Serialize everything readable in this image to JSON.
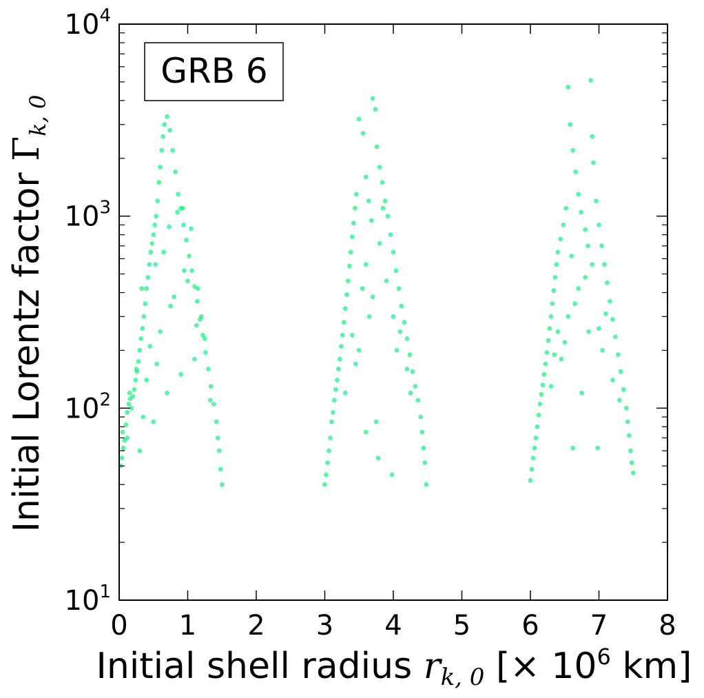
{
  "chart_data": {
    "type": "scatter",
    "title": "",
    "annotation": "GRB 6",
    "xlabel": {
      "prefix": "Initial shell radius ",
      "symbol": "r",
      "subscript": "k, 0",
      "unit_open": " [× 10",
      "unit_exp": "6",
      "unit_close": " km]"
    },
    "ylabel": {
      "prefix": "Initial Lorentz factor ",
      "symbol": "Γ",
      "subscript": "k, 0"
    },
    "xlim": [
      0,
      8
    ],
    "ylim": [
      10,
      10000
    ],
    "yscale": "log",
    "grid": false,
    "marker_color": "#00ee76",
    "x_ticks": [
      {
        "value": 0,
        "label": "0"
      },
      {
        "value": 1,
        "label": "1"
      },
      {
        "value": 2,
        "label": "2"
      },
      {
        "value": 3,
        "label": "3"
      },
      {
        "value": 4,
        "label": "4"
      },
      {
        "value": 5,
        "label": "5"
      },
      {
        "value": 6,
        "label": "6"
      },
      {
        "value": 7,
        "label": "7"
      },
      {
        "value": 8,
        "label": "8"
      }
    ],
    "y_ticks": [
      {
        "value": 10,
        "base": "10",
        "exp": "1"
      },
      {
        "value": 100,
        "base": "10",
        "exp": "2"
      },
      {
        "value": 1000,
        "base": "10",
        "exp": "3"
      },
      {
        "value": 10000,
        "base": "10",
        "exp": "4"
      }
    ],
    "pulses": [
      {
        "start": 0.0,
        "end": 1.5
      },
      {
        "start": 3.0,
        "end": 4.5
      },
      {
        "start": 6.0,
        "end": 7.5
      }
    ],
    "points": [
      [
        0.02,
        50
      ],
      [
        0.04,
        55
      ],
      [
        0.06,
        62
      ],
      [
        0.08,
        68
      ],
      [
        0.1,
        82
      ],
      [
        0.12,
        95
      ],
      [
        0.14,
        105
      ],
      [
        0.16,
        112
      ],
      [
        0.18,
        100
      ],
      [
        0.2,
        115
      ],
      [
        0.22,
        125
      ],
      [
        0.24,
        140
      ],
      [
        0.26,
        155
      ],
      [
        0.28,
        175
      ],
      [
        0.3,
        200
      ],
      [
        0.32,
        230
      ],
      [
        0.34,
        260
      ],
      [
        0.36,
        300
      ],
      [
        0.38,
        350
      ],
      [
        0.4,
        420
      ],
      [
        0.42,
        480
      ],
      [
        0.44,
        560
      ],
      [
        0.46,
        650
      ],
      [
        0.48,
        720
      ],
      [
        0.5,
        800
      ],
      [
        0.52,
        900
      ],
      [
        0.54,
        1000
      ],
      [
        0.56,
        1200
      ],
      [
        0.58,
        1500
      ],
      [
        0.6,
        1800
      ],
      [
        0.62,
        2200
      ],
      [
        0.64,
        2600
      ],
      [
        0.66,
        3000
      ],
      [
        0.7,
        3300
      ],
      [
        0.74,
        2800
      ],
      [
        0.78,
        2200
      ],
      [
        0.82,
        1700
      ],
      [
        0.86,
        1300
      ],
      [
        0.9,
        1100
      ],
      [
        0.94,
        900
      ],
      [
        0.98,
        750
      ],
      [
        1.02,
        620
      ],
      [
        1.06,
        520
      ],
      [
        1.1,
        430
      ],
      [
        1.14,
        360
      ],
      [
        1.18,
        290
      ],
      [
        1.22,
        240
      ],
      [
        1.26,
        195
      ],
      [
        1.3,
        160
      ],
      [
        1.34,
        130
      ],
      [
        1.38,
        105
      ],
      [
        1.42,
        85
      ],
      [
        1.44,
        70
      ],
      [
        1.46,
        60
      ],
      [
        1.48,
        48
      ],
      [
        1.5,
        40
      ],
      [
        0.3,
        60
      ],
      [
        0.5,
        85
      ],
      [
        0.7,
        120
      ],
      [
        0.9,
        150
      ],
      [
        1.1,
        180
      ],
      [
        0.4,
        140
      ],
      [
        0.6,
        250
      ],
      [
        0.8,
        380
      ],
      [
        1.0,
        460
      ],
      [
        1.2,
        300
      ],
      [
        0.35,
        90
      ],
      [
        0.55,
        170
      ],
      [
        0.75,
        340
      ],
      [
        0.95,
        520
      ],
      [
        1.15,
        420
      ],
      [
        0.45,
        210
      ],
      [
        0.65,
        650
      ],
      [
        0.85,
        1050
      ],
      [
        1.05,
        860
      ],
      [
        1.25,
        230
      ],
      [
        0.25,
        160
      ],
      [
        0.15,
        120
      ],
      [
        0.05,
        75
      ],
      [
        0.12,
        70
      ],
      [
        0.33,
        420
      ],
      [
        0.53,
        560
      ],
      [
        0.73,
        880
      ],
      [
        0.93,
        1100
      ],
      [
        1.13,
        270
      ],
      [
        1.33,
        110
      ],
      [
        3.0,
        40
      ],
      [
        3.02,
        45
      ],
      [
        3.04,
        52
      ],
      [
        3.06,
        60
      ],
      [
        3.08,
        70
      ],
      [
        3.1,
        85
      ],
      [
        3.12,
        95
      ],
      [
        3.14,
        110
      ],
      [
        3.16,
        125
      ],
      [
        3.18,
        140
      ],
      [
        3.2,
        160
      ],
      [
        3.22,
        180
      ],
      [
        3.24,
        210
      ],
      [
        3.26,
        240
      ],
      [
        3.28,
        280
      ],
      [
        3.3,
        330
      ],
      [
        3.32,
        390
      ],
      [
        3.34,
        460
      ],
      [
        3.36,
        550
      ],
      [
        3.38,
        650
      ],
      [
        3.4,
        780
      ],
      [
        3.42,
        920
      ],
      [
        3.44,
        1100
      ],
      [
        3.46,
        1300
      ],
      [
        3.5,
        3200
      ],
      [
        3.56,
        2700
      ],
      [
        3.6,
        1600
      ],
      [
        3.64,
        1200
      ],
      [
        3.68,
        950
      ],
      [
        3.7,
        4100
      ],
      [
        3.74,
        3600
      ],
      [
        3.76,
        2300
      ],
      [
        3.8,
        1800
      ],
      [
        3.84,
        1500
      ],
      [
        3.88,
        1200
      ],
      [
        3.92,
        1000
      ],
      [
        3.96,
        800
      ],
      [
        4.0,
        650
      ],
      [
        4.04,
        520
      ],
      [
        4.08,
        420
      ],
      [
        4.12,
        340
      ],
      [
        4.16,
        280
      ],
      [
        4.2,
        230
      ],
      [
        4.24,
        190
      ],
      [
        4.28,
        155
      ],
      [
        4.32,
        130
      ],
      [
        4.36,
        110
      ],
      [
        4.4,
        90
      ],
      [
        4.42,
        75
      ],
      [
        4.44,
        62
      ],
      [
        4.46,
        52
      ],
      [
        4.48,
        40
      ],
      [
        3.3,
        120
      ],
      [
        3.5,
        200
      ],
      [
        3.7,
        380
      ],
      [
        3.9,
        460
      ],
      [
        4.1,
        250
      ],
      [
        3.4,
        240
      ],
      [
        3.6,
        560
      ],
      [
        3.8,
        720
      ],
      [
        4.0,
        300
      ],
      [
        4.2,
        160
      ],
      [
        3.45,
        170
      ],
      [
        3.65,
        300
      ],
      [
        3.85,
        1100
      ],
      [
        4.05,
        200
      ],
      [
        3.55,
        420
      ],
      [
        3.75,
        85
      ],
      [
        3.6,
        75
      ],
      [
        3.78,
        55
      ],
      [
        3.98,
        45
      ],
      [
        4.25,
        120
      ]
    ],
    "points_pulse3": [
      [
        6.0,
        42
      ],
      [
        6.02,
        48
      ],
      [
        6.04,
        55
      ],
      [
        6.06,
        62
      ],
      [
        6.08,
        70
      ],
      [
        6.1,
        80
      ],
      [
        6.12,
        92
      ],
      [
        6.14,
        105
      ],
      [
        6.16,
        118
      ],
      [
        6.18,
        132
      ],
      [
        6.2,
        150
      ],
      [
        6.22,
        170
      ],
      [
        6.24,
        195
      ],
      [
        6.26,
        225
      ],
      [
        6.28,
        260
      ],
      [
        6.3,
        300
      ],
      [
        6.32,
        350
      ],
      [
        6.34,
        410
      ],
      [
        6.36,
        480
      ],
      [
        6.38,
        560
      ],
      [
        6.4,
        650
      ],
      [
        6.44,
        760
      ],
      [
        6.48,
        900
      ],
      [
        6.52,
        1100
      ],
      [
        6.55,
        4700
      ],
      [
        6.58,
        3000
      ],
      [
        6.62,
        2200
      ],
      [
        6.66,
        1700
      ],
      [
        6.7,
        1300
      ],
      [
        6.74,
        1050
      ],
      [
        6.8,
        850
      ],
      [
        6.84,
        700
      ],
      [
        6.88,
        5100
      ],
      [
        6.9,
        2600
      ],
      [
        6.92,
        1900
      ],
      [
        6.96,
        1200
      ],
      [
        7.0,
        900
      ],
      [
        7.04,
        700
      ],
      [
        7.08,
        560
      ],
      [
        7.12,
        450
      ],
      [
        7.16,
        360
      ],
      [
        7.2,
        290
      ],
      [
        7.24,
        235
      ],
      [
        7.28,
        190
      ],
      [
        7.32,
        155
      ],
      [
        7.36,
        125
      ],
      [
        7.4,
        100
      ],
      [
        7.42,
        85
      ],
      [
        7.44,
        72
      ],
      [
        7.46,
        60
      ],
      [
        7.48,
        52
      ],
      [
        7.5,
        46
      ],
      [
        6.3,
        130
      ],
      [
        6.5,
        220
      ],
      [
        6.7,
        420
      ],
      [
        6.9,
        560
      ],
      [
        7.1,
        310
      ],
      [
        6.4,
        250
      ],
      [
        6.6,
        620
      ],
      [
        6.8,
        480
      ],
      [
        7.0,
        260
      ],
      [
        7.2,
        140
      ],
      [
        6.45,
        180
      ],
      [
        6.65,
        350
      ],
      [
        6.85,
        250
      ],
      [
        7.05,
        200
      ],
      [
        6.55,
        300
      ],
      [
        6.75,
        120
      ],
      [
        6.62,
        62
      ],
      [
        6.98,
        62
      ],
      [
        7.3,
        110
      ],
      [
        6.35,
        190
      ]
    ]
  }
}
